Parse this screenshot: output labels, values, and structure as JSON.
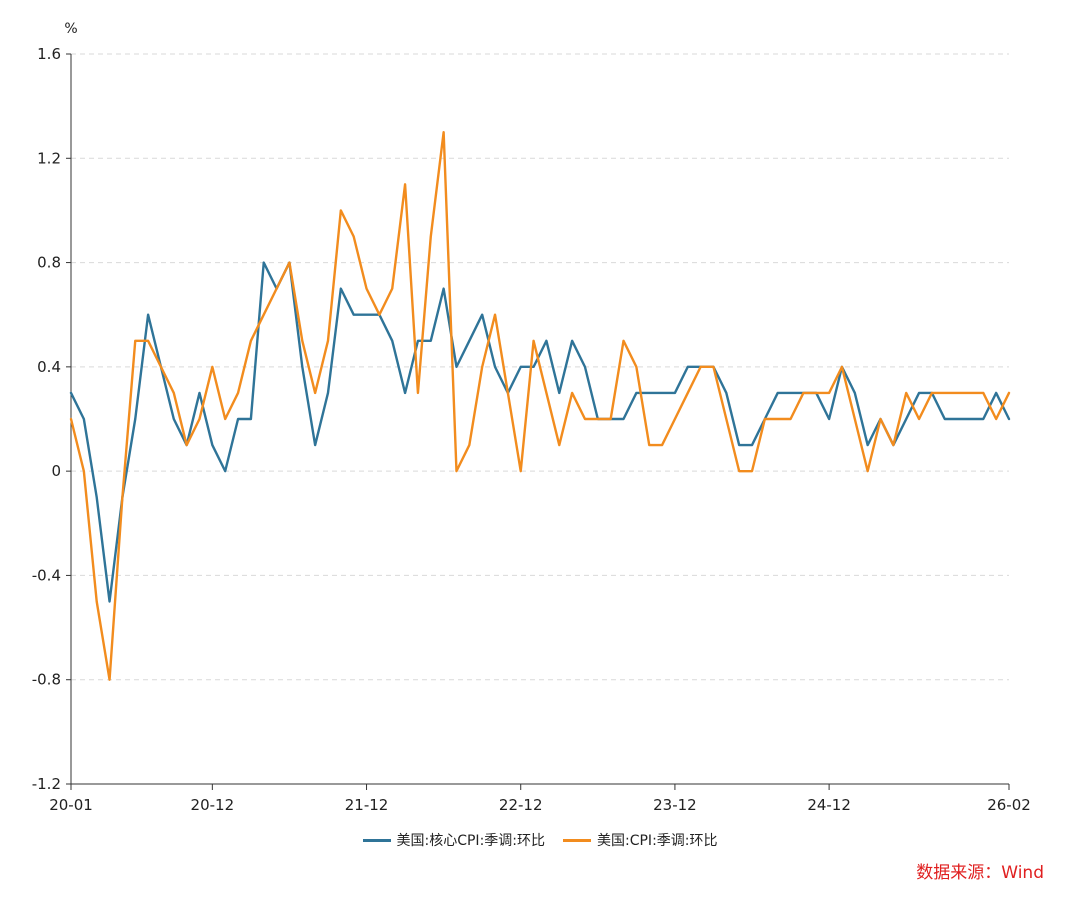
{
  "chart_data": {
    "type": "line",
    "y_unit": "%",
    "ylim": [
      -1.2,
      1.6
    ],
    "y_ticks": [
      "1.6",
      "1.2",
      "0.8",
      "0.4",
      "0",
      "-0.4",
      "-0.8",
      "-1.2"
    ],
    "y_tick_values": [
      1.6,
      1.2,
      0.8,
      0.4,
      0,
      -0.4,
      -0.8,
      -1.2
    ],
    "x_start": "20-01",
    "x_end": "26-02",
    "x_ticks": [
      {
        "label": "20-01",
        "month_index": 0
      },
      {
        "label": "20-12",
        "month_index": 11
      },
      {
        "label": "21-12",
        "month_index": 23
      },
      {
        "label": "22-12",
        "month_index": 35
      },
      {
        "label": "23-12",
        "month_index": 47
      },
      {
        "label": "24-12",
        "month_index": 59
      },
      {
        "label": "26-02",
        "month_index": 73
      }
    ],
    "grid": "horizontal dashed",
    "legend_position": "bottom",
    "series": [
      {
        "name": "美国:核心CPI:季调:环比",
        "color": "#2f7498",
        "values": [
          0.3,
          0.2,
          -0.1,
          -0.5,
          -0.1,
          0.2,
          0.6,
          0.4,
          0.2,
          0.1,
          0.3,
          0.1,
          0.0,
          0.2,
          0.2,
          0.8,
          0.7,
          0.8,
          0.4,
          0.1,
          0.3,
          0.7,
          0.6,
          0.6,
          0.6,
          0.5,
          0.3,
          0.5,
          0.5,
          0.7,
          0.4,
          0.5,
          0.6,
          0.4,
          0.3,
          0.4,
          0.4,
          0.5,
          0.3,
          0.5,
          0.4,
          0.2,
          0.2,
          0.2,
          0.3,
          0.3,
          0.3,
          0.3,
          0.4,
          0.4,
          0.4,
          0.3,
          0.1,
          0.1,
          0.2,
          0.3,
          0.3,
          0.3,
          0.3,
          0.2,
          0.4,
          0.3,
          0.1,
          0.2,
          0.1,
          0.2,
          0.3,
          0.3,
          0.2,
          0.2,
          0.2,
          0.2,
          0.3,
          0.2
        ]
      },
      {
        "name": "美国:CPI:季调:环比",
        "color": "#f28c1e",
        "values": [
          0.2,
          0.0,
          -0.5,
          -0.8,
          -0.1,
          0.5,
          0.5,
          0.4,
          0.3,
          0.1,
          0.2,
          0.4,
          0.2,
          0.3,
          0.5,
          0.6,
          0.7,
          0.8,
          0.5,
          0.3,
          0.5,
          1.0,
          0.9,
          0.7,
          0.6,
          0.7,
          1.1,
          0.3,
          0.9,
          1.3,
          0.0,
          0.1,
          0.4,
          0.6,
          0.3,
          0.0,
          0.5,
          0.3,
          0.1,
          0.3,
          0.2,
          0.2,
          0.2,
          0.5,
          0.4,
          0.1,
          0.1,
          0.2,
          0.3,
          0.4,
          0.4,
          0.2,
          0.0,
          0.0,
          0.2,
          0.2,
          0.2,
          0.3,
          0.3,
          0.3,
          0.4,
          0.2,
          0.0,
          0.2,
          0.1,
          0.3,
          0.2,
          0.3,
          0.3,
          0.3,
          0.3,
          0.3,
          0.2,
          0.3
        ]
      }
    ]
  },
  "source_text": "数据来源：Wind"
}
